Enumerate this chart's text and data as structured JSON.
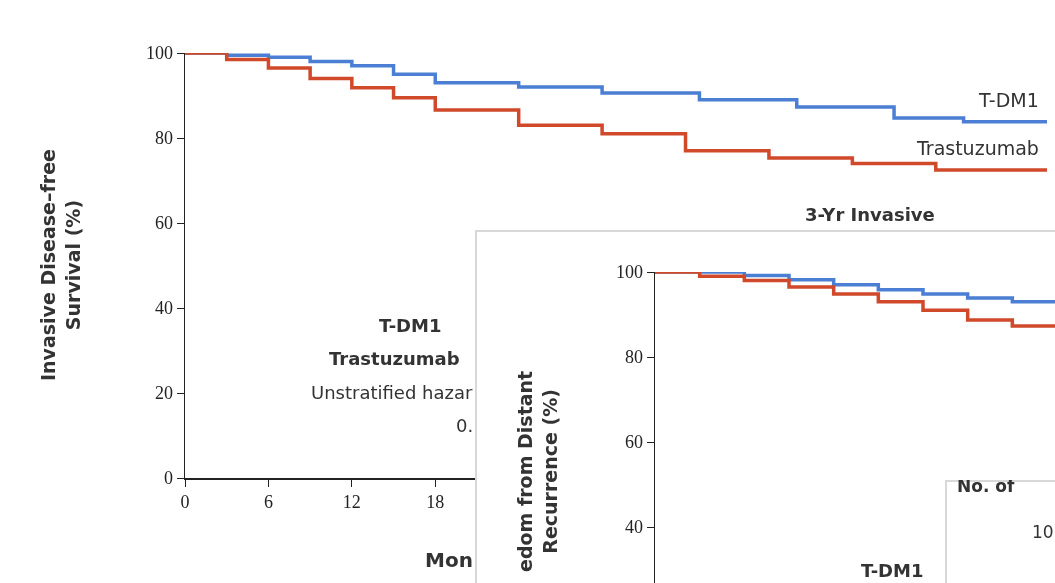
{
  "chart_data": [
    {
      "type": "step",
      "ylabel": "Invasive Disease–free\nSurvival (%)",
      "xlabel": "Mon",
      "annotations": [
        "3-Yr Invasive",
        "T-DM1",
        "Trastuzumab",
        "Unstratified hazar",
        "0."
      ],
      "xlim": [
        0,
        62
      ],
      "xticks": [
        0,
        6,
        12,
        18
      ],
      "ylim": [
        0,
        100
      ],
      "yticks": [
        0,
        20,
        40,
        60,
        80,
        100
      ],
      "grid": false,
      "legend": false,
      "series": [
        {
          "name": "T-DM1",
          "color": "#4a7fd4",
          "x": [
            0,
            3,
            6,
            9,
            12,
            15,
            18,
            24,
            30,
            37,
            44,
            51,
            56,
            62
          ],
          "values": [
            100,
            99.5,
            99,
            98,
            97,
            95,
            93,
            92,
            90.6,
            89,
            87.3,
            84.7,
            83.8,
            83.8
          ]
        },
        {
          "name": "Trastuzumab",
          "color": "#d0492a",
          "x": [
            0,
            3,
            6,
            9,
            12,
            15,
            18,
            24,
            30,
            36,
            42,
            48,
            54,
            62
          ],
          "values": [
            100,
            98.5,
            96.5,
            94,
            91.8,
            89.5,
            86.6,
            83,
            81,
            77,
            75.3,
            74,
            72.5,
            72.5
          ]
        }
      ]
    },
    {
      "type": "step",
      "ylabel": "edom from Distant\nRecurrence (%)",
      "annotations": [
        "T-DM1"
      ],
      "categories": [
        null,
        null,
        null,
        null,
        null,
        null,
        null,
        null,
        null,
        null
      ],
      "ylim": [
        0,
        100
      ],
      "yticks": [
        40,
        60,
        80,
        100
      ],
      "grid": false,
      "legend": false,
      "tick_labels": "y",
      "series": [
        {
          "color": "#4a7fd4",
          "values": [
            100,
            100,
            99.2,
            98.2,
            97,
            95.8,
            94.8,
            93.9,
            93,
            92
          ]
        },
        {
          "color": "#d0492a",
          "values": [
            100,
            99,
            98,
            96.5,
            94.8,
            93,
            91,
            88.7,
            87.3,
            86.3
          ]
        }
      ]
    },
    {
      "type": "other",
      "annotations": [
        "No. of",
        "10"
      ]
    }
  ]
}
